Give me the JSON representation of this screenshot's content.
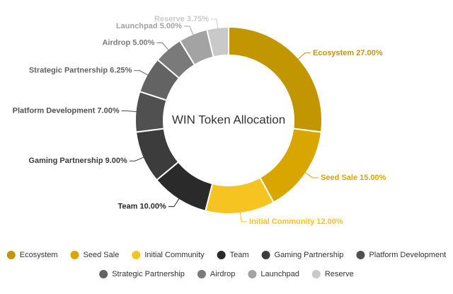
{
  "chart_data": {
    "type": "donut",
    "title": "WIN Token Allocation",
    "categories": [
      "Ecosystem",
      "Seed Sale",
      "Initial Community",
      "Team",
      "Gaming Partnership",
      "Platform Development",
      "Strategic Partnership",
      "Airdrop",
      "Launchpad",
      "Reserve"
    ],
    "values": [
      27,
      15,
      12,
      10,
      9,
      7,
      6.25,
      5,
      5,
      3.75
    ],
    "value_labels": [
      "27.00%",
      "15.00%",
      "12.00%",
      "10.00%",
      "9.00%",
      "7.00%",
      "6.25%",
      "5.00%",
      "5.00%",
      "3.75%"
    ],
    "colors": [
      "#c29600",
      "#d9a600",
      "#f6c420",
      "#2a2a2a",
      "#3c3c3c",
      "#505050",
      "#636363",
      "#7a7a7a",
      "#a3a3a3",
      "#c9c9c9"
    ],
    "legend": "bottom"
  }
}
